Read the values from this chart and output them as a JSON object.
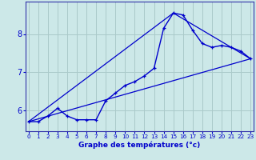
{
  "title": "",
  "xlabel": "Graphe des températures (°c)",
  "bg_color": "#cce8e8",
  "line_color": "#0000cc",
  "grid_color": "#aacaca",
  "axis_color": "#3333aa",
  "hours": [
    0,
    1,
    2,
    3,
    4,
    5,
    6,
    7,
    8,
    9,
    10,
    11,
    12,
    13,
    14,
    15,
    16,
    17,
    18,
    19,
    20,
    21,
    22,
    23
  ],
  "temps": [
    5.7,
    5.7,
    5.85,
    6.05,
    5.85,
    5.75,
    5.75,
    5.75,
    6.25,
    6.45,
    6.65,
    6.75,
    6.9,
    7.1,
    8.15,
    8.55,
    8.5,
    8.1,
    7.75,
    7.65,
    7.7,
    7.65,
    7.55,
    7.35
  ],
  "line1_x": [
    0,
    23
  ],
  "line1_y": [
    5.7,
    7.35
  ],
  "line2_x": [
    0,
    15,
    23
  ],
  "line2_y": [
    5.7,
    8.55,
    7.35
  ],
  "xlim": [
    -0.3,
    23.3
  ],
  "ylim": [
    5.45,
    8.85
  ],
  "yticks": [
    6,
    7,
    8
  ],
  "xticks": [
    0,
    1,
    2,
    3,
    4,
    5,
    6,
    7,
    8,
    9,
    10,
    11,
    12,
    13,
    14,
    15,
    16,
    17,
    18,
    19,
    20,
    21,
    22,
    23
  ]
}
